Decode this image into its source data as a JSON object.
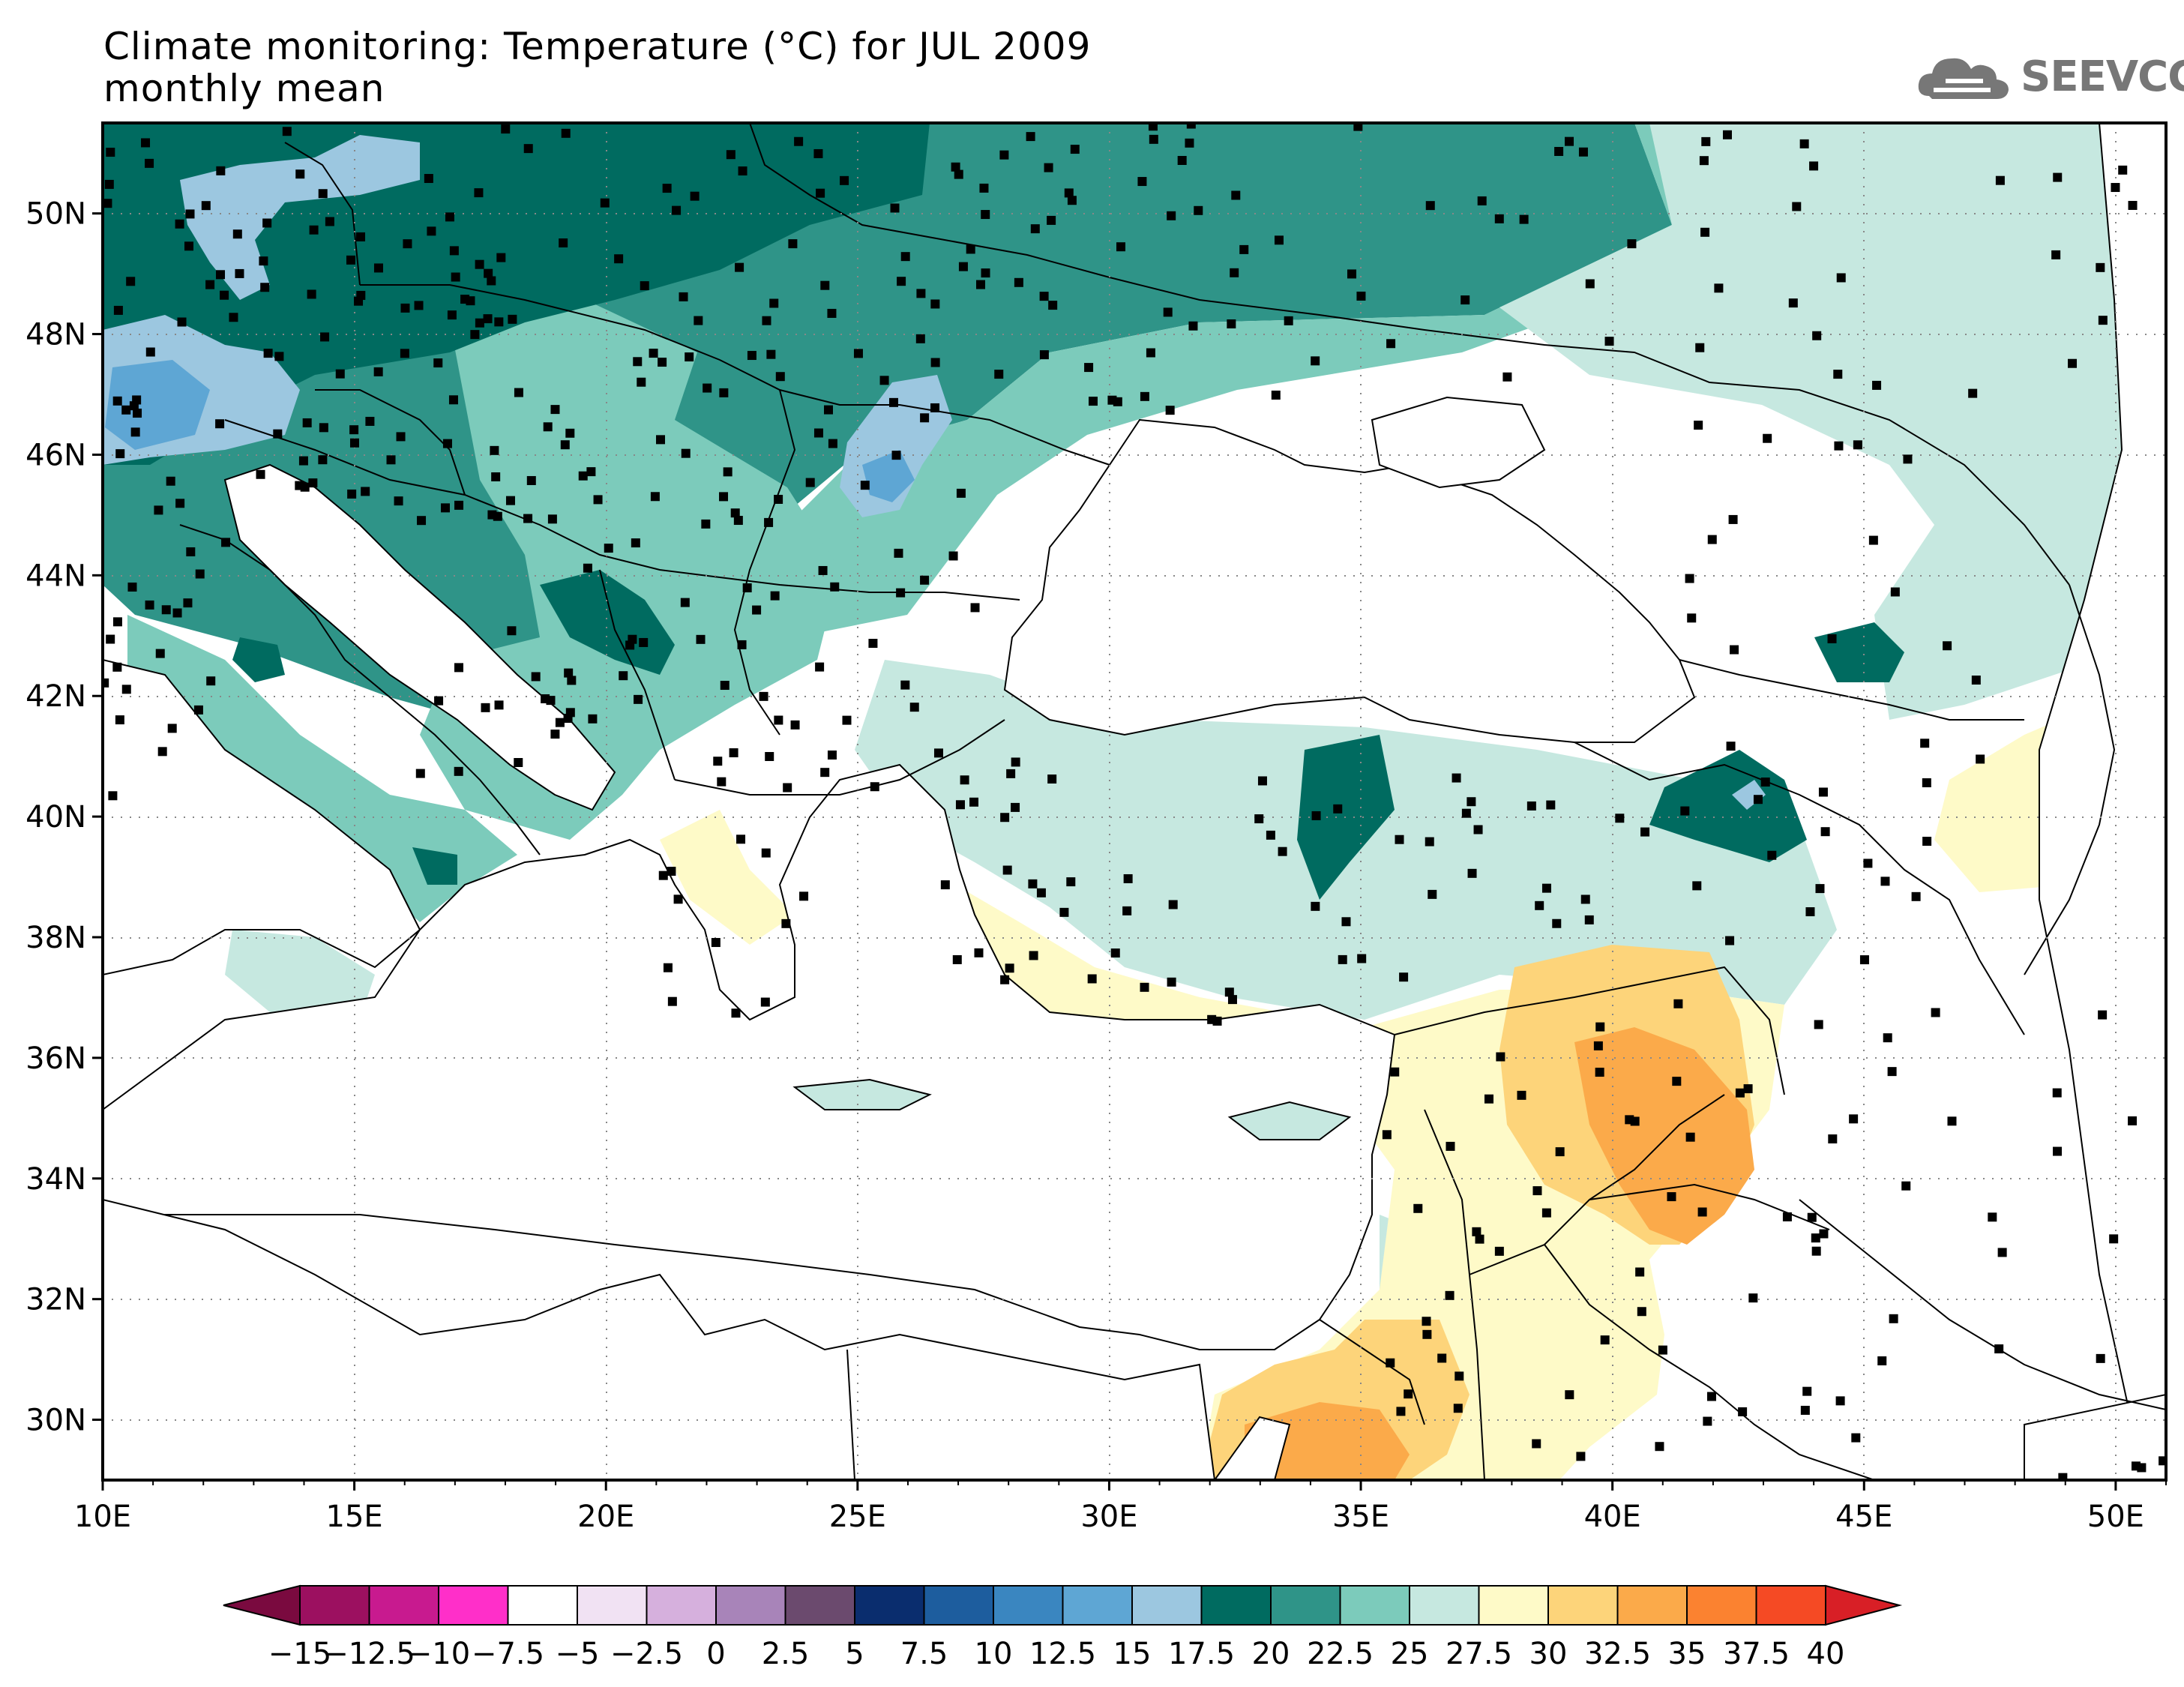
{
  "title": {
    "line1": "Climate monitoring: Temperature (°C) for JUL 2009",
    "line2": "monthly mean"
  },
  "logo": {
    "text": "SEEVCCC",
    "icon": "cloud-icon"
  },
  "map": {
    "lon_range": [
      10,
      51
    ],
    "lat_range": [
      29,
      51.5
    ],
    "lon_ticks": [
      "10E",
      "15E",
      "20E",
      "25E",
      "30E",
      "35E",
      "40E",
      "45E",
      "50E"
    ],
    "lat_ticks": [
      "30N",
      "32N",
      "34N",
      "36N",
      "38N",
      "40N",
      "42N",
      "44N",
      "46N",
      "48N",
      "50N"
    ],
    "station_marker": "black square"
  },
  "colorbar": {
    "labels": [
      "−15",
      "−12.5",
      "−10",
      "−7.5",
      "−5",
      "−2.5",
      "0",
      "2.5",
      "5",
      "7.5",
      "10",
      "12.5",
      "15",
      "17.5",
      "20",
      "22.5",
      "25",
      "27.5",
      "30",
      "32.5",
      "35",
      "37.5",
      "40"
    ],
    "colors": [
      "#7a0a3f",
      "#9c1060",
      "#c81a8f",
      "#ff2fc9",
      "#ffffff",
      "#f1e2f3",
      "#d6b0dd",
      "#a884b9",
      "#6b4a6e",
      "#0a2d6e",
      "#1d5d9e",
      "#3a86c0",
      "#5ea6d4",
      "#9cc7e0",
      "#006b60",
      "#2f9488",
      "#7ccbbb",
      "#c6e8e0",
      "#fefac8",
      "#fdd47a",
      "#fbaa4a",
      "#fb8230",
      "#f54a24",
      "#d81f26"
    ]
  }
}
